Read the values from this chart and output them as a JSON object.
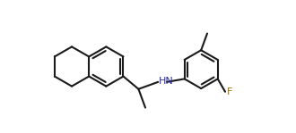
{
  "bg_color": "#ffffff",
  "bond_color": "#1a1a1a",
  "bond_lw": 1.5,
  "dpi": 100,
  "figsize": [
    3.3,
    1.49
  ],
  "hn_color": "#2b2b9e",
  "f_color": "#9a7000",
  "font_size": 8.0,
  "r1": 0.095,
  "r2": 0.092
}
